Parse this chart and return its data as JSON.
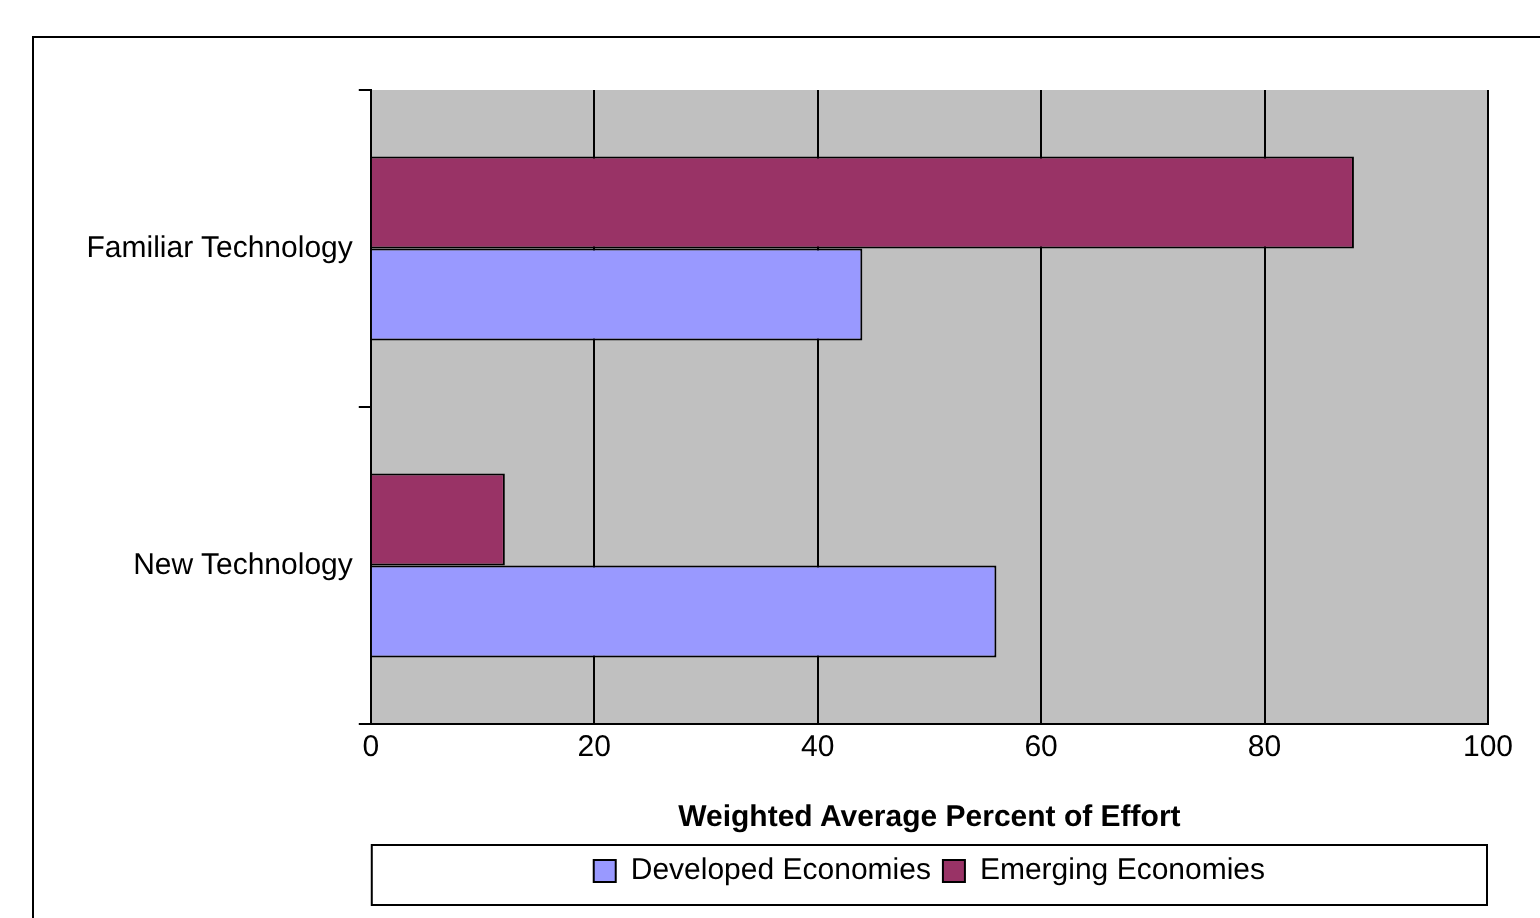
{
  "chart_data": {
    "type": "bar",
    "orientation": "horizontal",
    "categories": [
      "Familiar Technology",
      "New Technology"
    ],
    "series": [
      {
        "name": "Developed Economies",
        "color": "#9999ff",
        "values": [
          44,
          56
        ]
      },
      {
        "name": "Emerging Economies",
        "color": "#993366",
        "values": [
          88,
          12
        ]
      }
    ],
    "xlabel": "Weighted Average Percent of Effort",
    "xlim": [
      0,
      100
    ],
    "xticks": [
      0,
      20,
      40,
      60,
      80,
      100
    ],
    "grid": "x",
    "legend": "bottom"
  }
}
